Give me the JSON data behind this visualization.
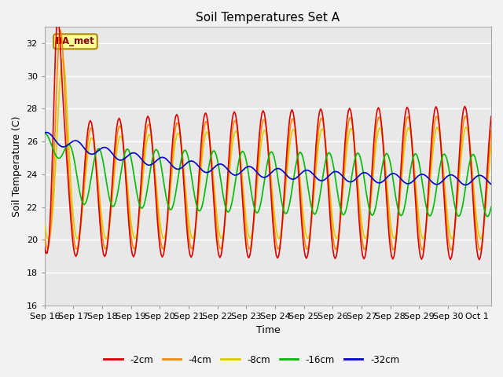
{
  "title": "Soil Temperatures Set A",
  "xlabel": "Time",
  "ylabel": "Soil Temperature (C)",
  "ylim": [
    16,
    33
  ],
  "series_colors": {
    "-2cm": "#dd0000",
    "-4cm": "#ff8800",
    "-8cm": "#ddcc00",
    "-16cm": "#00bb00",
    "-32cm": "#0000cc"
  },
  "legend_label": "BA_met",
  "legend_box_facecolor": "#ffff99",
  "legend_box_edgecolor": "#aa8800",
  "plot_bg_color": "#e8e8e8",
  "fig_bg_color": "#f2f2f2",
  "grid_color": "#ffffff",
  "yticks": [
    16,
    18,
    20,
    22,
    24,
    26,
    28,
    30,
    32
  ]
}
